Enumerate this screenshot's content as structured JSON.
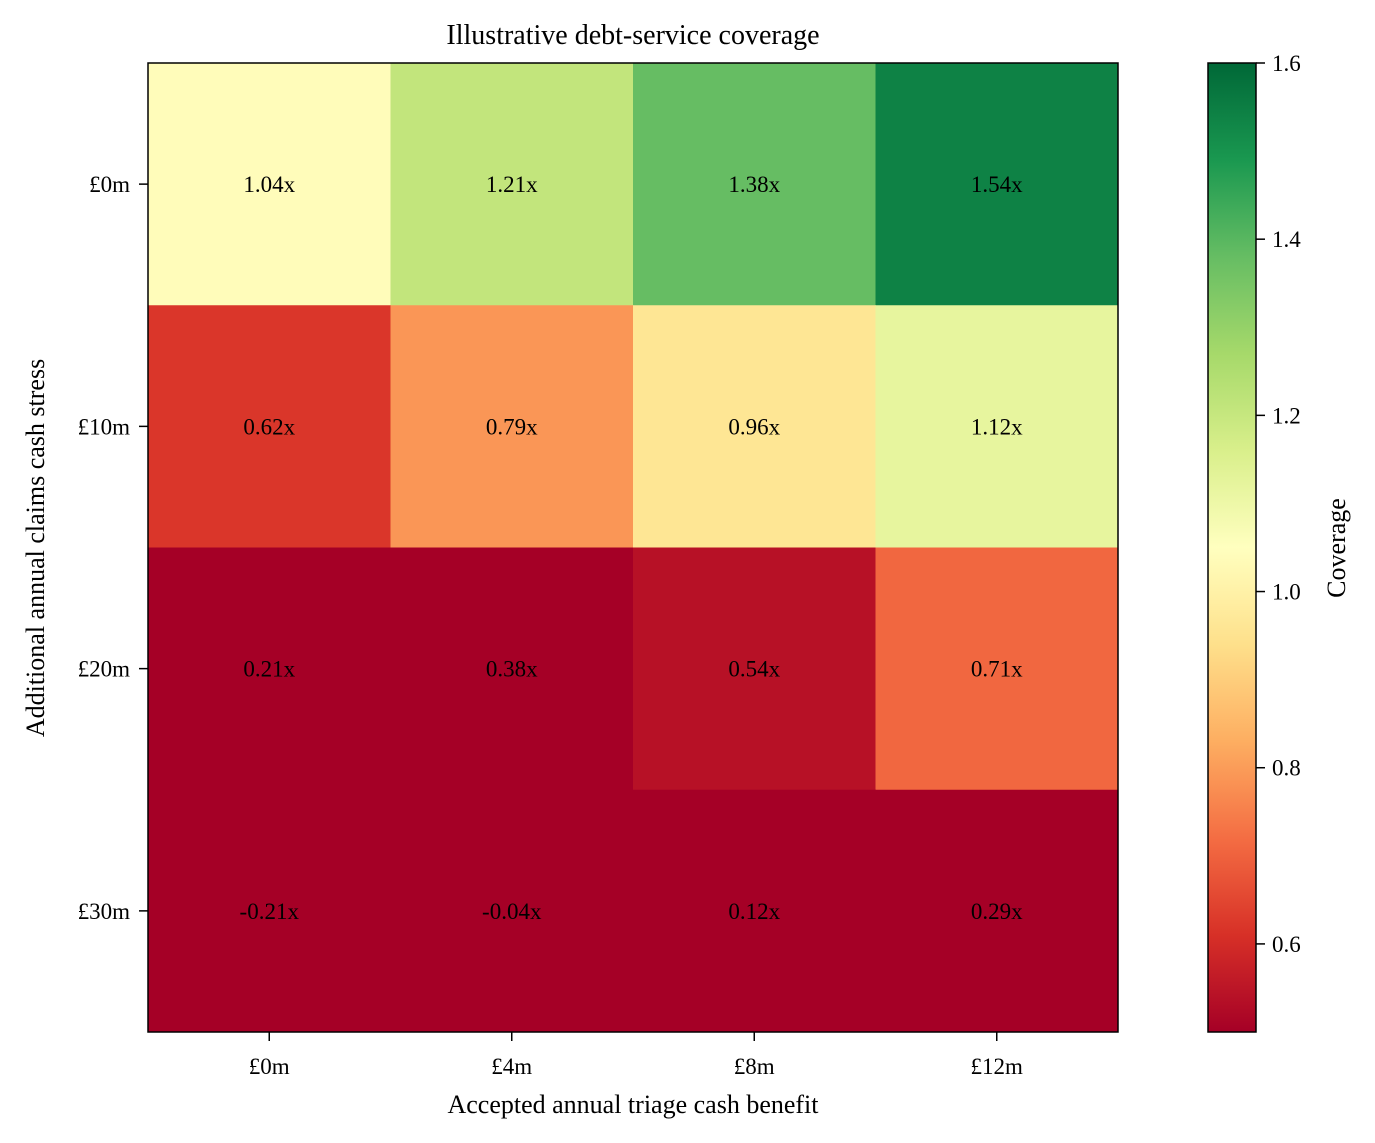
{
  "chart_data": {
    "type": "heatmap",
    "title": "Illustrative debt-service coverage",
    "xlabel": "Accepted annual triage cash benefit",
    "ylabel": "Additional annual claims cash stress",
    "x_categories": [
      "£0m",
      "£4m",
      "£8m",
      "£12m"
    ],
    "y_categories": [
      "£0m",
      "£10m",
      "£20m",
      "£30m"
    ],
    "values": [
      [
        1.04,
        1.21,
        1.38,
        1.54
      ],
      [
        0.62,
        0.79,
        0.96,
        1.12
      ],
      [
        0.21,
        0.38,
        0.54,
        0.71
      ],
      [
        -0.21,
        -0.04,
        0.12,
        0.29
      ]
    ],
    "cell_labels": [
      [
        "1.04x",
        "1.21x",
        "1.38x",
        "1.54x"
      ],
      [
        "0.62x",
        "0.79x",
        "0.96x",
        "1.12x"
      ],
      [
        "0.21x",
        "0.38x",
        "0.54x",
        "0.71x"
      ],
      [
        "-0.21x",
        "-0.04x",
        "0.12x",
        "0.29x"
      ]
    ],
    "colorbar": {
      "label": "Coverage",
      "vmin": 0.5,
      "vmax": 1.6,
      "ticks": [
        0.6,
        0.8,
        1.0,
        1.2,
        1.4,
        1.6
      ],
      "tick_labels": [
        "0.6",
        "0.8",
        "1.0",
        "1.2",
        "1.4",
        "1.6"
      ],
      "colormap": "RdYlGn"
    }
  }
}
